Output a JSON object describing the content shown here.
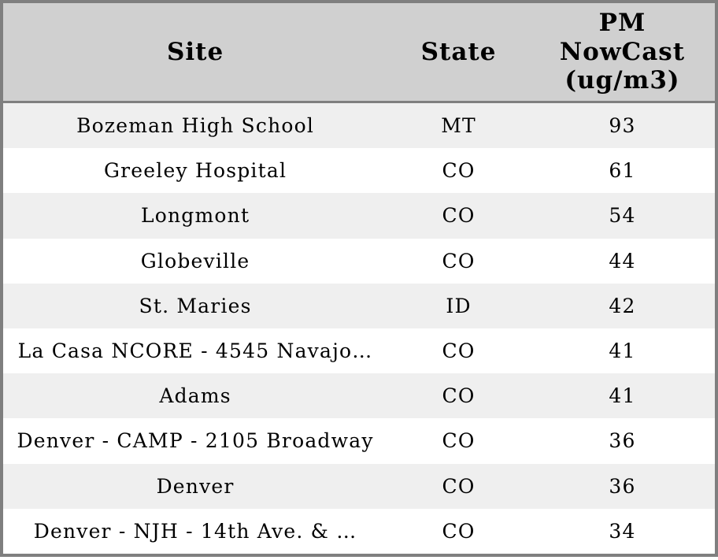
{
  "table": {
    "header": {
      "site": "Site",
      "state": "State",
      "pm": "PM NowCast (ug/m3)"
    },
    "rows": [
      {
        "site": "Bozeman High School",
        "state": "MT",
        "pm": "93"
      },
      {
        "site": "Greeley Hospital",
        "state": "CO",
        "pm": "61"
      },
      {
        "site": "Longmont",
        "state": "CO",
        "pm": "54"
      },
      {
        "site": "Globeville",
        "state": "CO",
        "pm": "44"
      },
      {
        "site": "St. Maries",
        "state": "ID",
        "pm": "42"
      },
      {
        "site": "La Casa NCORE - 4545 Navajo…",
        "state": "CO",
        "pm": "41"
      },
      {
        "site": "Adams",
        "state": "CO",
        "pm": "41"
      },
      {
        "site": "Denver - CAMP - 2105 Broadway",
        "state": "CO",
        "pm": "36"
      },
      {
        "site": "Denver",
        "state": "CO",
        "pm": "36"
      },
      {
        "site": "Denver - NJH - 14th Ave. & …",
        "state": "CO",
        "pm": "34"
      }
    ],
    "colors": {
      "header_background": "#d0d0d0",
      "border": "#7f7f7f",
      "row_alt_background": "#efefef",
      "row_background": "#ffffff",
      "text": "#000000"
    }
  },
  "chart_data": {
    "type": "table",
    "title": "",
    "columns": [
      "Site",
      "State",
      "PM NowCast (ug/m3)"
    ],
    "rows": [
      [
        "Bozeman High School",
        "MT",
        93
      ],
      [
        "Greeley Hospital",
        "CO",
        61
      ],
      [
        "Longmont",
        "CO",
        54
      ],
      [
        "Globeville",
        "CO",
        44
      ],
      [
        "St. Maries",
        "ID",
        42
      ],
      [
        "La Casa NCORE - 4545 Navajo…",
        "CO",
        41
      ],
      [
        "Adams",
        "CO",
        41
      ],
      [
        "Denver - CAMP - 2105 Broadway",
        "CO",
        36
      ],
      [
        "Denver",
        "CO",
        36
      ],
      [
        "Denver - NJH - 14th Ave. & …",
        "CO",
        34
      ]
    ],
    "layout": {
      "header_rows": 1,
      "zebra_striping": true,
      "value_sort": "descending by PM NowCast"
    }
  }
}
